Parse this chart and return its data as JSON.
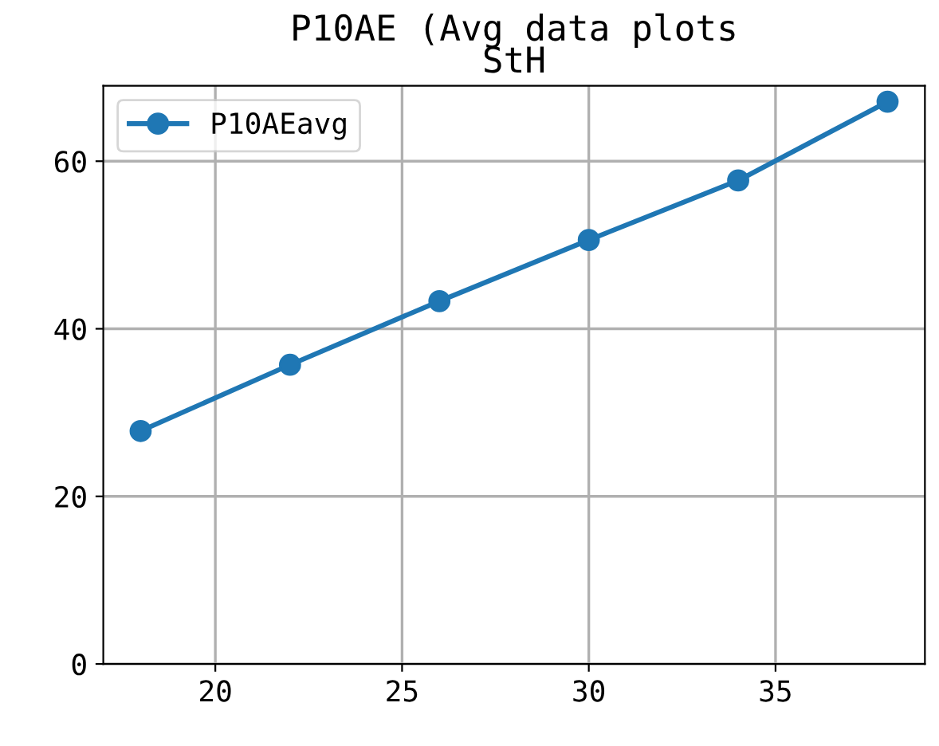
{
  "chart_data": {
    "type": "line",
    "title": "P10AE (Avg data plots\nStH",
    "x": [
      18,
      22,
      26,
      30,
      34,
      38
    ],
    "series": [
      {
        "name": "P10AEavg",
        "color": "#1f77b4",
        "values": [
          27.8,
          35.7,
          43.3,
          50.6,
          57.7,
          67.1
        ]
      }
    ],
    "xlim": [
      17,
      39
    ],
    "xticks": [
      20,
      25,
      30,
      35
    ],
    "ylim": [
      0,
      69
    ],
    "yticks": [
      0,
      20,
      40,
      60
    ],
    "grid": true,
    "legend": "top left",
    "marker": "circle",
    "line_style": "solid"
  }
}
